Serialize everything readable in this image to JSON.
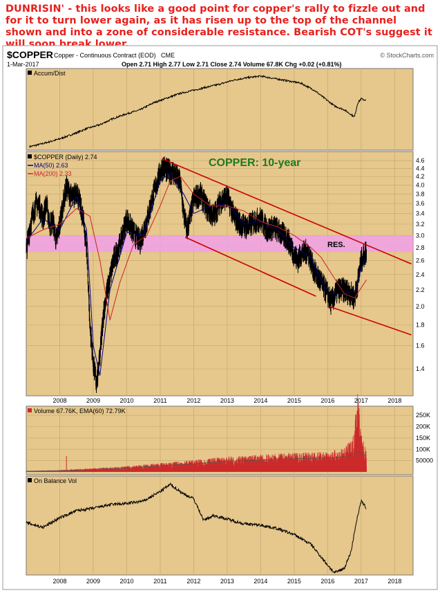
{
  "commentary": "DUNRISIN' - this looks like a good point for copper's rally to fizzle out and for it to turn lower again, as it has risen up to the top of the channel shown and into a zone of considerable resistance. Bearish COT's suggest it will soon break lower.",
  "header": {
    "symbol": "$COPPER",
    "description": "Copper - Continuous Contract (EOD)",
    "exchange": "CME",
    "date": "1-Mar-2017",
    "quote": "Open 2.71  High 2.77  Low 2.71  Close 2.74  Volume 67.8K  Chg +0.02 (+0.81%)",
    "watermark": "© StockCharts.com"
  },
  "colors": {
    "panel_bg": "#e6c78c",
    "price_line": "#000000",
    "ma50": "#000080",
    "ma200": "#cc2222",
    "channel": "#cc0000",
    "resistance_zone": "#f0a0e8",
    "volume_bar": "#cc2a2a",
    "annotation_green": "#1e7a1e"
  },
  "chart_data": [
    {
      "type": "line",
      "panel": "accum-dist",
      "legend": "Accum/Dist",
      "x": [
        2007.1,
        2007.5,
        2008.0,
        2008.4,
        2008.8,
        2009.2,
        2009.6,
        2010.0,
        2010.4,
        2010.8,
        2011.2,
        2011.6,
        2012.0,
        2012.4,
        2012.8,
        2013.2,
        2013.6,
        2014.0,
        2014.4,
        2014.8,
        2015.2,
        2015.6,
        2015.9,
        2016.2,
        2016.5,
        2016.8,
        2016.9,
        2017.0,
        2017.15
      ],
      "values": [
        10,
        14,
        20,
        26,
        33,
        38,
        46,
        52,
        57,
        66,
        72,
        78,
        82,
        86,
        90,
        95,
        98,
        100,
        97,
        94,
        91,
        82,
        72,
        62,
        57,
        48,
        66,
        71,
        69
      ]
    },
    {
      "type": "line",
      "panel": "price",
      "title": "COPPER: 10-year",
      "x_ticks": [
        "2008",
        "2009",
        "2010",
        "2011",
        "2012",
        "2013",
        "2014",
        "2015",
        "2016",
        "2017",
        "2018"
      ],
      "y_ticks": [
        "4.6",
        "4.4",
        "4.2",
        "4.0",
        "3.8",
        "3.6",
        "3.4",
        "3.2",
        "3.0",
        "2.8",
        "2.6",
        "2.4",
        "2.2",
        "2.0",
        "1.8",
        "1.6",
        "1.4"
      ],
      "y_scale": "log",
      "ylim": [
        1.22,
        4.75
      ],
      "legend": [
        "$COPPER (Daily) 2.74",
        "MA(50) 2.63",
        "MA(200) 2.33"
      ],
      "annotation": "RES.",
      "resistance_zone": [
        2.73,
        3.0
      ],
      "channel_upper": [
        [
          2011.05,
          4.65
        ],
        [
          2018.5,
          2.55
        ]
      ],
      "channel_lower_1": [
        [
          2011.75,
          2.97
        ],
        [
          2015.65,
          2.12
        ]
      ],
      "channel_lower_2": [
        [
          2016.05,
          2.0
        ],
        [
          2018.5,
          1.7
        ]
      ],
      "series": [
        {
          "name": "$COPPER (Daily)",
          "x": [
            2007.0,
            2007.1,
            2007.2,
            2007.3,
            2007.4,
            2007.5,
            2007.6,
            2007.7,
            2007.8,
            2007.9,
            2008.0,
            2008.1,
            2008.2,
            2008.3,
            2008.4,
            2008.5,
            2008.6,
            2008.7,
            2008.8,
            2008.9,
            2009.0,
            2009.1,
            2009.2,
            2009.3,
            2009.4,
            2009.5,
            2009.6,
            2009.8,
            2010.0,
            2010.2,
            2010.4,
            2010.6,
            2010.8,
            2011.0,
            2011.1,
            2011.2,
            2011.4,
            2011.6,
            2011.7,
            2011.8,
            2011.9,
            2012.0,
            2012.2,
            2012.4,
            2012.6,
            2012.8,
            2013.0,
            2013.2,
            2013.4,
            2013.6,
            2013.8,
            2014.0,
            2014.2,
            2014.4,
            2014.6,
            2014.8,
            2015.0,
            2015.1,
            2015.2,
            2015.4,
            2015.6,
            2015.8,
            2016.0,
            2016.1,
            2016.3,
            2016.5,
            2016.7,
            2016.8,
            2016.9,
            2017.0,
            2017.1,
            2017.16
          ],
          "values": [
            2.75,
            3.1,
            3.4,
            3.6,
            3.55,
            3.3,
            3.6,
            3.2,
            3.25,
            2.9,
            3.2,
            3.6,
            3.95,
            3.8,
            3.7,
            3.9,
            3.6,
            3.3,
            2.8,
            1.8,
            1.45,
            1.28,
            1.5,
            1.9,
            2.15,
            2.35,
            2.6,
            2.85,
            3.3,
            3.05,
            2.9,
            3.25,
            3.8,
            4.3,
            4.45,
            4.35,
            4.3,
            4.05,
            3.4,
            3.1,
            3.35,
            3.7,
            3.8,
            3.5,
            3.35,
            3.65,
            3.75,
            3.35,
            3.2,
            3.15,
            3.25,
            3.3,
            3.1,
            3.15,
            3.05,
            2.95,
            2.7,
            2.6,
            2.7,
            2.75,
            2.45,
            2.3,
            2.15,
            2.05,
            2.2,
            2.2,
            2.15,
            2.1,
            2.3,
            2.6,
            2.7,
            2.74
          ]
        },
        {
          "name": "MA(50)",
          "x": [
            2007.0,
            2007.5,
            2008.0,
            2008.5,
            2008.8,
            2009.0,
            2009.2,
            2009.5,
            2010.0,
            2010.5,
            2011.0,
            2011.3,
            2011.7,
            2012.0,
            2012.5,
            2013.0,
            2013.5,
            2014.0,
            2014.5,
            2015.0,
            2015.5,
            2016.0,
            2016.5,
            2016.85,
            2017.0,
            2017.16
          ],
          "values": [
            2.9,
            3.3,
            3.1,
            3.75,
            3.1,
            1.6,
            1.35,
            2.2,
            3.05,
            3.0,
            4.1,
            4.3,
            3.8,
            3.4,
            3.55,
            3.6,
            3.2,
            3.25,
            3.1,
            2.8,
            2.65,
            2.15,
            2.15,
            2.2,
            2.5,
            2.63
          ]
        },
        {
          "name": "MA(200)",
          "x": [
            2007.0,
            2007.5,
            2008.0,
            2008.5,
            2008.9,
            2009.2,
            2009.5,
            2009.8,
            2010.2,
            2010.6,
            2011.0,
            2011.3,
            2011.6,
            2012.0,
            2012.5,
            2013.0,
            2013.5,
            2014.0,
            2014.5,
            2015.0,
            2015.5,
            2015.8,
            2016.2,
            2016.5,
            2016.8,
            2017.16
          ],
          "values": [
            2.95,
            3.1,
            3.2,
            3.5,
            3.35,
            2.6,
            1.85,
            2.3,
            2.85,
            3.0,
            3.55,
            4.1,
            4.2,
            3.8,
            3.55,
            3.55,
            3.45,
            3.25,
            3.15,
            3.0,
            2.8,
            2.65,
            2.35,
            2.15,
            2.1,
            2.33
          ]
        }
      ]
    },
    {
      "type": "bar",
      "panel": "volume",
      "legend": "Volume 67.76K, EMA(60) 72.79K",
      "y_ticks": [
        "250K",
        "200K",
        "150K",
        "100K",
        "50000"
      ],
      "ylim": [
        0,
        275000
      ],
      "x": [
        2007.0,
        2008.0,
        2009.0,
        2010.0,
        2011.0,
        2012.0,
        2013.0,
        2014.0,
        2015.0,
        2016.0,
        2016.5,
        2016.75,
        2016.9,
        2017.0,
        2017.16
      ],
      "values": [
        3000,
        6000,
        12000,
        18000,
        28000,
        38000,
        48000,
        55000,
        60000,
        65000,
        75000,
        110000,
        270000,
        120000,
        67760
      ],
      "ema_values": [
        3000,
        5000,
        11000,
        17000,
        27000,
        36000,
        46000,
        52000,
        58000,
        62000,
        66000,
        75000,
        90000,
        80000,
        72790
      ]
    },
    {
      "type": "line",
      "panel": "obv",
      "legend": "On Balance Vol",
      "x": [
        2007.0,
        2007.5,
        2008.0,
        2008.5,
        2009.0,
        2009.5,
        2010.0,
        2010.5,
        2011.0,
        2011.3,
        2011.7,
        2012.0,
        2012.3,
        2012.6,
        2013.0,
        2013.5,
        2014.0,
        2014.5,
        2015.0,
        2015.5,
        2015.9,
        2016.2,
        2016.5,
        2016.7,
        2016.85,
        2017.0,
        2017.16
      ],
      "values": [
        60,
        56,
        64,
        70,
        72,
        75,
        76,
        78,
        86,
        92,
        84,
        80,
        62,
        66,
        63,
        59,
        58,
        55,
        50,
        42,
        28,
        18,
        22,
        36,
        60,
        78,
        72
      ]
    }
  ]
}
